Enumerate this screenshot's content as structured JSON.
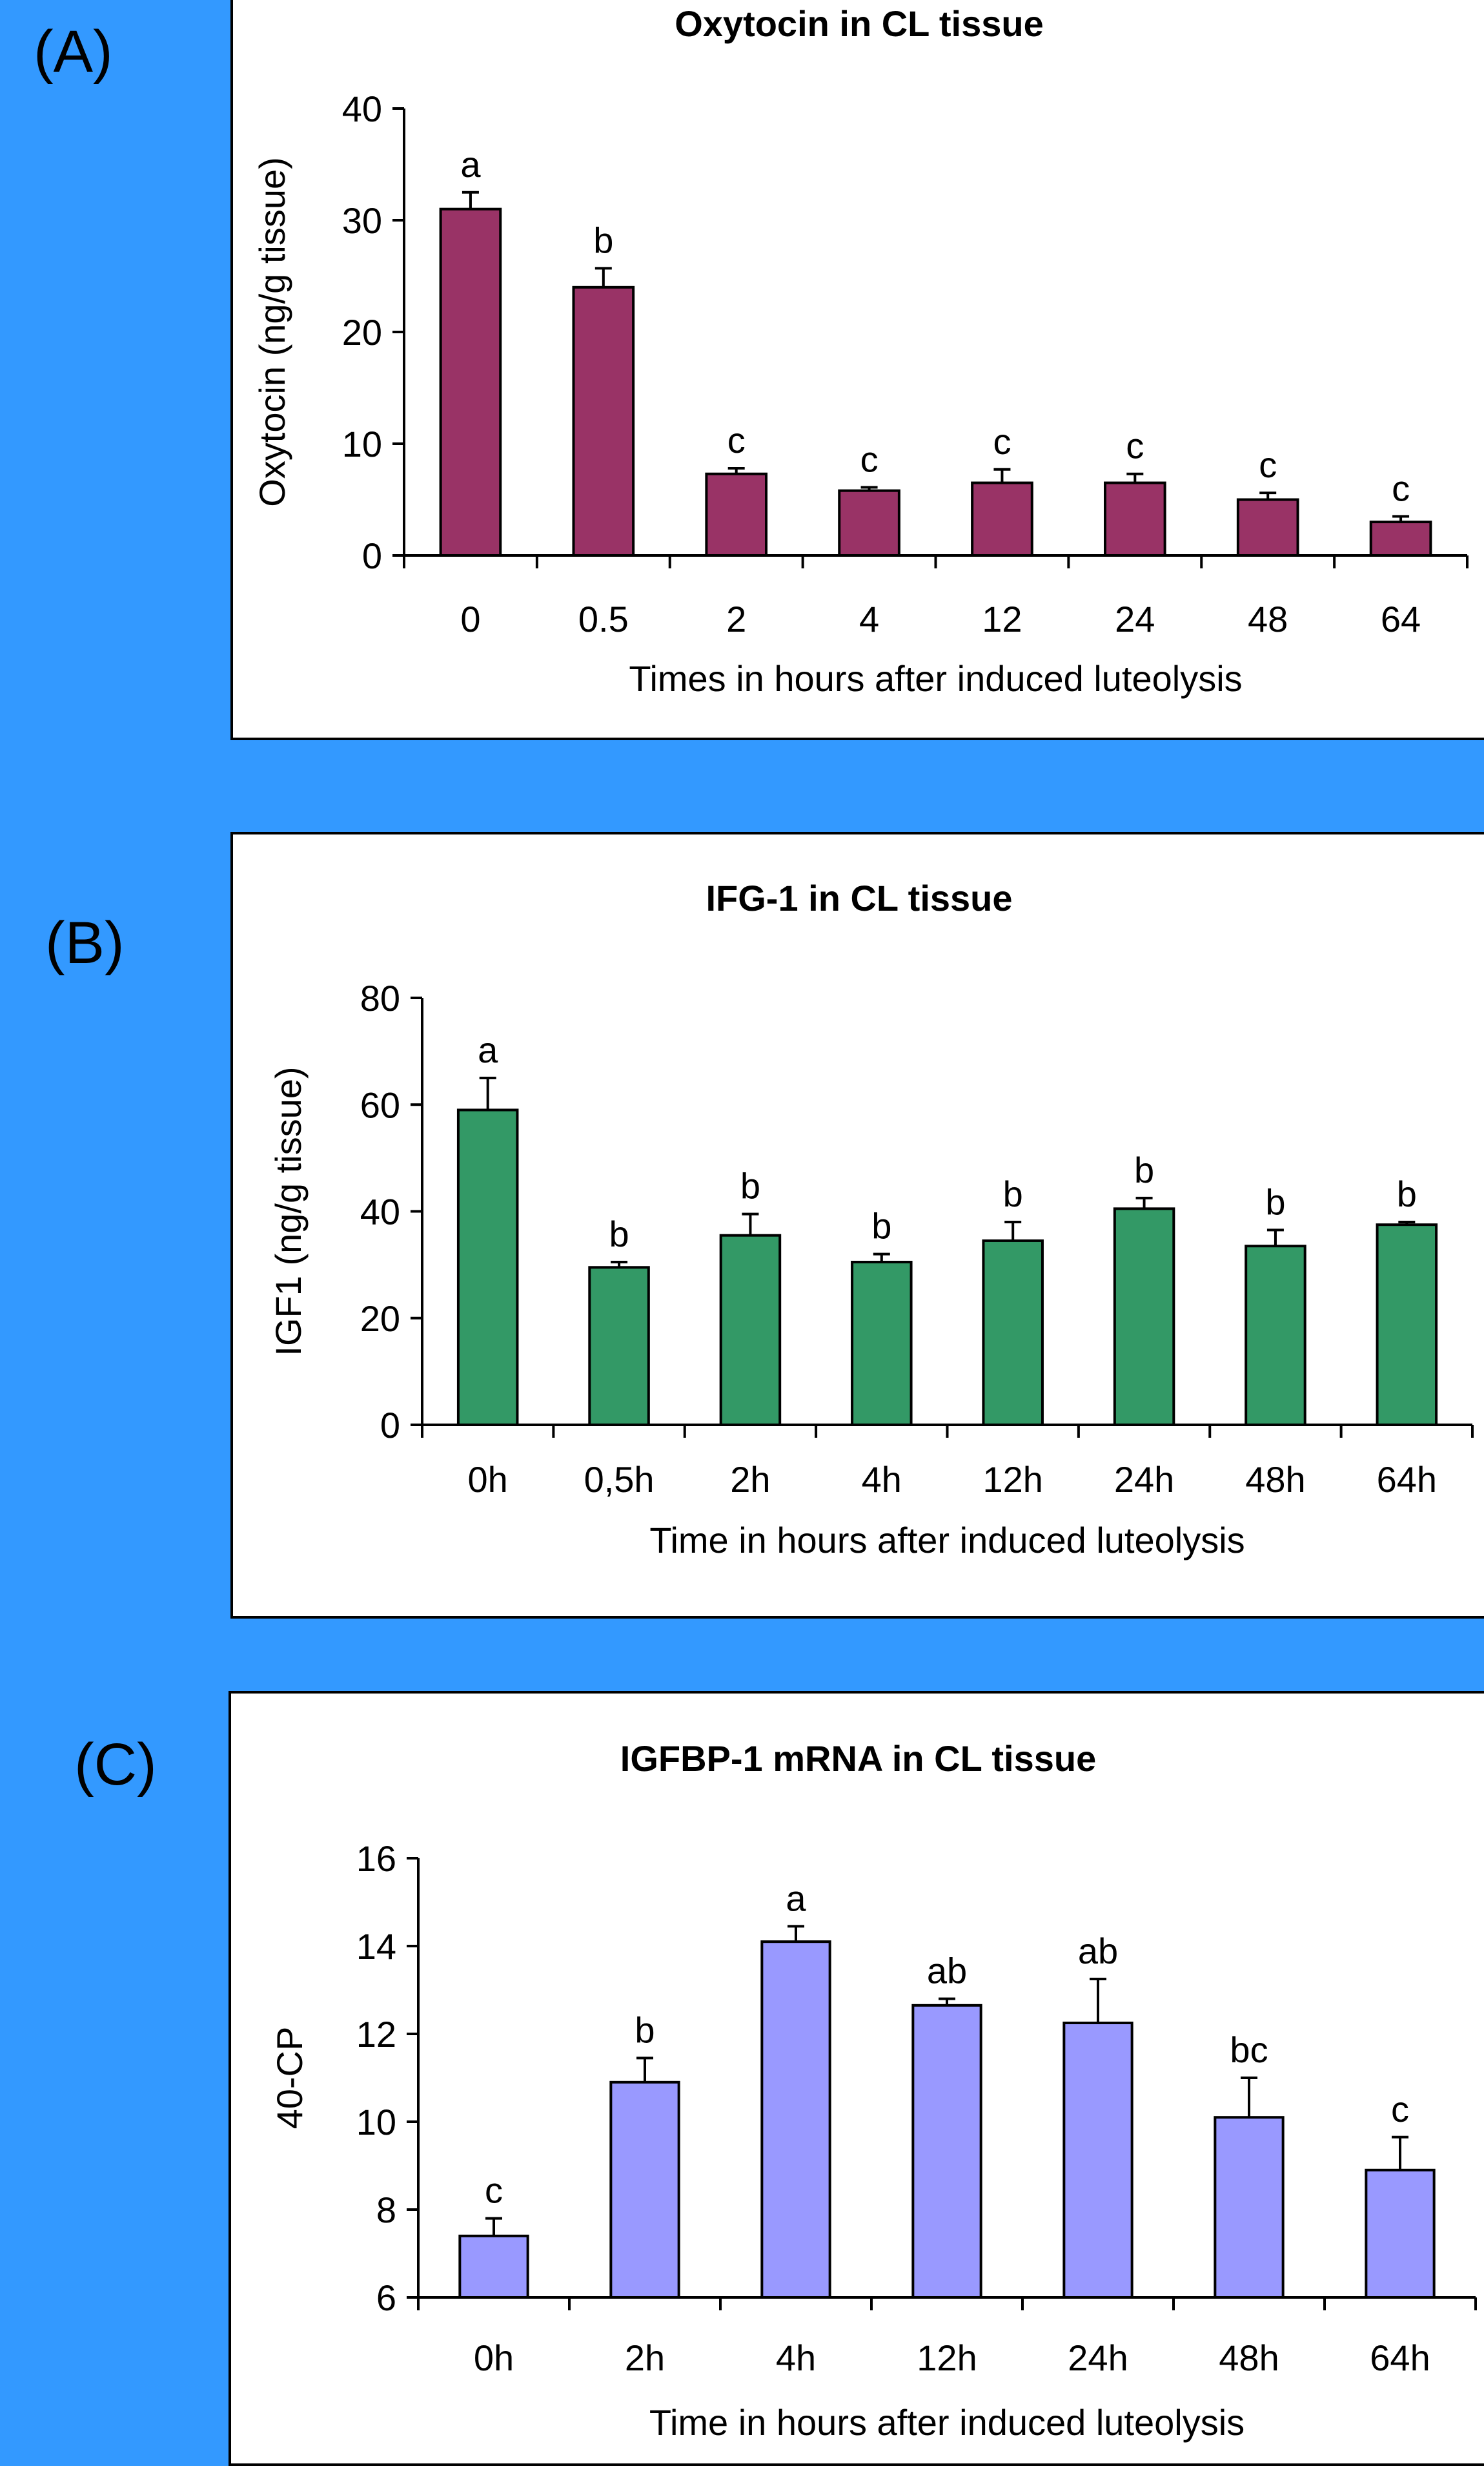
{
  "colors": {
    "background": "#3399ff",
    "panel_a_bar": "#993366",
    "panel_b_bar": "#339966",
    "panel_c_bar": "#9999ff"
  },
  "panel_labels": [
    "(A)",
    "(B)",
    "(C)"
  ],
  "chart_data": [
    {
      "type": "bar",
      "title": "Oxytocin in CL tissue",
      "xlabel": "Times in hours after induced luteolysis",
      "ylabel": "Oxytocin (ng/g tissue)",
      "categories": [
        "0",
        "0.5",
        "2",
        "4",
        "12",
        "24",
        "48",
        "64"
      ],
      "values": [
        31,
        24,
        7.3,
        5.8,
        6.5,
        6.5,
        5,
        3
      ],
      "errors": [
        1.5,
        1.7,
        0.5,
        0.3,
        1.2,
        0.8,
        0.6,
        0.5
      ],
      "significance_labels": [
        "a",
        "b",
        "c",
        "c",
        "c",
        "c",
        "c",
        "c"
      ],
      "ylim": [
        0,
        40
      ],
      "yticks": [
        0,
        10,
        20,
        30,
        40
      ],
      "grid": false
    },
    {
      "type": "bar",
      "title": "IFG-1 in CL tissue",
      "xlabel": "Time in hours after induced luteolysis",
      "ylabel": "IGF1 (ng/g tissue)",
      "categories": [
        "0h",
        "0,5h",
        "2h",
        "4h",
        "12h",
        "24h",
        "48h",
        "64h"
      ],
      "values": [
        59,
        29.5,
        35.5,
        30.5,
        34.5,
        40.5,
        33.5,
        37.5
      ],
      "errors": [
        6,
        1,
        4,
        1.5,
        3.5,
        2,
        3,
        0.5
      ],
      "significance_labels": [
        "a",
        "b",
        "b",
        "b",
        "b",
        "b",
        "b",
        "b"
      ],
      "ylim": [
        0,
        80
      ],
      "yticks": [
        0,
        20,
        40,
        60,
        80
      ],
      "grid": false
    },
    {
      "type": "bar",
      "title": "IGFBP-1 mRNA in CL tissue",
      "xlabel": "Time in hours after induced luteolysis",
      "ylabel": "40-CP",
      "categories": [
        "0h",
        "2h",
        "4h",
        "12h",
        "24h",
        "48h",
        "64h"
      ],
      "values": [
        7.4,
        10.9,
        14.1,
        12.65,
        12.25,
        10.1,
        8.9
      ],
      "errors": [
        0.4,
        0.55,
        0.35,
        0.15,
        1.0,
        0.9,
        0.75
      ],
      "significance_labels": [
        "c",
        "b",
        "a",
        "ab",
        "ab",
        "bc",
        "c"
      ],
      "ylim": [
        6,
        16
      ],
      "yticks": [
        6,
        8,
        10,
        12,
        14,
        16
      ],
      "grid": false
    }
  ]
}
